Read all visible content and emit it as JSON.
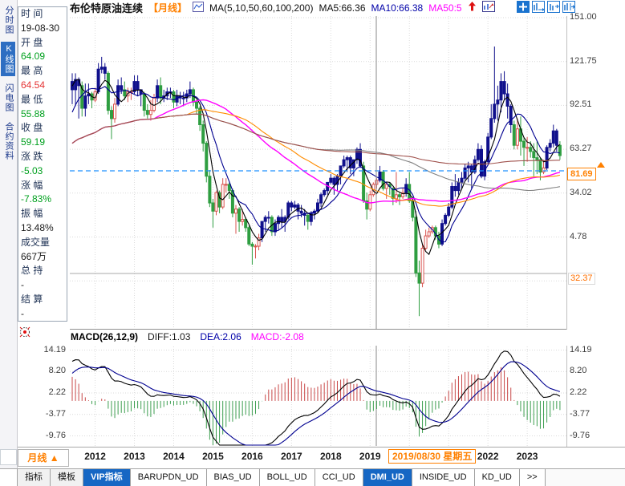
{
  "header": {
    "title": "布伦特原油连续",
    "period_tag": "【月线】",
    "ma_settings": "MA(5,10,50,60,100,200)",
    "ma5": "MA5:66.36",
    "ma10": "MA10:66.38",
    "ma50": "MA50:5"
  },
  "sidebar_tabs": [
    {
      "label": "分时图",
      "active": false
    },
    {
      "label": "K线图",
      "active": true
    },
    {
      "label": "闪电图",
      "active": false
    },
    {
      "label": "合约资料",
      "active": false
    }
  ],
  "quote_panel": {
    "rows": [
      {
        "label": "时 间",
        "value": "19-08-30",
        "color": "dark"
      },
      {
        "label": "开 盘",
        "value": "64.09",
        "color": "green"
      },
      {
        "label": "最 高",
        "value": "64.54",
        "color": "red"
      },
      {
        "label": "最 低",
        "value": "55.88",
        "color": "green"
      },
      {
        "label": "收 盘",
        "value": "59.19",
        "color": "green"
      },
      {
        "label": "涨 跌",
        "value": "-5.03",
        "color": "green"
      },
      {
        "label": "涨 幅",
        "value": "-7.83%",
        "color": "green"
      },
      {
        "label": "振 幅",
        "value": "13.48%",
        "color": "dark"
      },
      {
        "label": "成交量",
        "value": "667万",
        "color": "dark"
      },
      {
        "label": "总 持",
        "value": "-",
        "color": "dark"
      },
      {
        "label": "结 算",
        "value": "-",
        "color": "dark"
      }
    ]
  },
  "macd_header": {
    "name": "MACD(26,12,9)",
    "diff": "DIFF:1.03",
    "dea": "DEA:2.06",
    "macd": "MACD:-2.08"
  },
  "period_selector": {
    "label": "月线 ▲"
  },
  "bottom_left_tabs": [
    {
      "label": "指标"
    },
    {
      "label": "模板"
    }
  ],
  "indicator_tabs": [
    {
      "label": "VIP指标",
      "active": true
    },
    {
      "label": "BARUPDN_UD",
      "active": false
    },
    {
      "label": "BIAS_UD",
      "active": false
    },
    {
      "label": "BOLL_UD",
      "active": false
    },
    {
      "label": "CCI_UD",
      "active": false
    },
    {
      "label": "DMI_UD",
      "active": true
    },
    {
      "label": "INSIDE_UD",
      "active": false
    },
    {
      "label": "KD_UD",
      "active": false
    },
    {
      "label": ">>",
      "active": false
    }
  ],
  "chart_data": {
    "type": "candlestick",
    "title": "布伦特原油连续 月线",
    "freq": "monthly",
    "start": "2011-06",
    "warmup_closes": [
      69,
      71,
      73,
      68,
      75,
      77,
      78,
      74,
      72,
      77,
      79,
      85,
      87,
      75,
      78,
      82,
      84,
      86,
      93,
      97,
      103,
      112,
      126,
      116
    ],
    "candles": [
      [
        116,
        120,
        105,
        112
      ],
      [
        112,
        120,
        104,
        117
      ],
      [
        117,
        118,
        98,
        114
      ],
      [
        114,
        116,
        99,
        103
      ],
      [
        103,
        115,
        99,
        109
      ],
      [
        109,
        115,
        105,
        110
      ],
      [
        110,
        111,
        103,
        107
      ],
      [
        107,
        113,
        106,
        111
      ],
      [
        111,
        125,
        110,
        122
      ],
      [
        122,
        128,
        120,
        123
      ],
      [
        123,
        125,
        117,
        120
      ],
      [
        120,
        121,
        100,
        102
      ],
      [
        102,
        104,
        88,
        98
      ],
      [
        98,
        108,
        96,
        105
      ],
      [
        105,
        117,
        104,
        114
      ],
      [
        114,
        118,
        110,
        112
      ],
      [
        112,
        116,
        107,
        109
      ],
      [
        109,
        113,
        106,
        111
      ],
      [
        111,
        113,
        107,
        111
      ],
      [
        111,
        119,
        110,
        116
      ],
      [
        116,
        119,
        109,
        112
      ],
      [
        112,
        112,
        104,
        110
      ],
      [
        110,
        111,
        99,
        102
      ],
      [
        102,
        105,
        98,
        100
      ],
      [
        100,
        107,
        97,
        102
      ],
      [
        102,
        110,
        101,
        108
      ],
      [
        108,
        117,
        106,
        114
      ],
      [
        114,
        118,
        105,
        108
      ],
      [
        108,
        112,
        106,
        109
      ],
      [
        109,
        113,
        107,
        111
      ],
      [
        111,
        113,
        108,
        111
      ],
      [
        111,
        112,
        103,
        106
      ],
      [
        106,
        112,
        104,
        109
      ],
      [
        109,
        111,
        105,
        108
      ],
      [
        108,
        111,
        104,
        108
      ],
      [
        108,
        112,
        106,
        110
      ],
      [
        110,
        116,
        108,
        112
      ],
      [
        112,
        113,
        104,
        106
      ],
      [
        106,
        107,
        100,
        103
      ],
      [
        103,
        104,
        92,
        95
      ],
      [
        95,
        97,
        82,
        86
      ],
      [
        86,
        87,
        67,
        70
      ],
      [
        70,
        73,
        55,
        57
      ],
      [
        57,
        59,
        45,
        53
      ],
      [
        53,
        63,
        51,
        62
      ],
      [
        62,
        63,
        52,
        55
      ],
      [
        55,
        69,
        54,
        66
      ],
      [
        66,
        69,
        62,
        66
      ],
      [
        66,
        67,
        59,
        63
      ],
      [
        63,
        64,
        50,
        52
      ],
      [
        52,
        56,
        42,
        54
      ],
      [
        54,
        55,
        43,
        48
      ],
      [
        48,
        54,
        46,
        49
      ],
      [
        49,
        50,
        43,
        45
      ],
      [
        45,
        46,
        36,
        37
      ],
      [
        37,
        38,
        27,
        36
      ],
      [
        36,
        37,
        30,
        36
      ],
      [
        36,
        42,
        34,
        40
      ],
      [
        40,
        48,
        38,
        48
      ],
      [
        48,
        51,
        43,
        50
      ],
      [
        50,
        53,
        47,
        50
      ],
      [
        50,
        51,
        41,
        43
      ],
      [
        43,
        49,
        41,
        47
      ],
      [
        47,
        51,
        44,
        50
      ],
      [
        50,
        54,
        45,
        48
      ],
      [
        48,
        51,
        43,
        50
      ],
      [
        50,
        58,
        49,
        57
      ],
      [
        57,
        58,
        53,
        55
      ],
      [
        55,
        58,
        54,
        56
      ],
      [
        56,
        57,
        49,
        53
      ],
      [
        53,
        56,
        50,
        52
      ],
      [
        52,
        54,
        46,
        51
      ],
      [
        51,
        52,
        44,
        48
      ],
      [
        48,
        53,
        46,
        52
      ],
      [
        52,
        54,
        49,
        53
      ],
      [
        53,
        59,
        52,
        57
      ],
      [
        57,
        62,
        55,
        61
      ],
      [
        61,
        64,
        60,
        63
      ],
      [
        63,
        67,
        61,
        67
      ],
      [
        67,
        71,
        66,
        69
      ],
      [
        69,
        70,
        61,
        66
      ],
      [
        66,
        71,
        63,
        70
      ],
      [
        70,
        75,
        66,
        75
      ],
      [
        75,
        80,
        74,
        78
      ],
      [
        78,
        80,
        72,
        79
      ],
      [
        79,
        80,
        71,
        74
      ],
      [
        74,
        78,
        70,
        78
      ],
      [
        78,
        84,
        76,
        83
      ],
      [
        83,
        86,
        74,
        75
      ],
      [
        75,
        77,
        57,
        58
      ],
      [
        58,
        62,
        49,
        54
      ],
      [
        54,
        63,
        53,
        61
      ],
      [
        61,
        67,
        60,
        66
      ],
      [
        66,
        69,
        64,
        68
      ],
      [
        68,
        75,
        67,
        72
      ],
      [
        72,
        73,
        63,
        64
      ],
      [
        64,
        67,
        59,
        66
      ],
      [
        66,
        67,
        61,
        65
      ],
      [
        64.09,
        64.54,
        55.88,
        59.19
      ],
      [
        59,
        72,
        57,
        61
      ],
      [
        61,
        62,
        56,
        60
      ],
      [
        60,
        64,
        59,
        62
      ],
      [
        62,
        69,
        60,
        66
      ],
      [
        66,
        72,
        57,
        58
      ],
      [
        58,
        60,
        48,
        50
      ],
      [
        50,
        53,
        21,
        23
      ],
      [
        23,
        29,
        2,
        18
      ],
      [
        18,
        37,
        16,
        35
      ],
      [
        35,
        44,
        34,
        41
      ],
      [
        41,
        45,
        40,
        43
      ],
      [
        43,
        46,
        42,
        45
      ],
      [
        45,
        46,
        39,
        41
      ],
      [
        41,
        43,
        35,
        37
      ],
      [
        37,
        49,
        36,
        47
      ],
      [
        47,
        52,
        46,
        51
      ],
      [
        51,
        57,
        50,
        55
      ],
      [
        55,
        67,
        54,
        65
      ],
      [
        65,
        71,
        60,
        63
      ],
      [
        63,
        69,
        61,
        67
      ],
      [
        67,
        72,
        64,
        69
      ],
      [
        69,
        76,
        68,
        74
      ],
      [
        74,
        77,
        67,
        75
      ],
      [
        75,
        76,
        64,
        72
      ],
      [
        72,
        80,
        71,
        78
      ],
      [
        78,
        86,
        77,
        83
      ],
      [
        83,
        85,
        69,
        70
      ],
      [
        70,
        78,
        68,
        77
      ],
      [
        77,
        91,
        76,
        89
      ],
      [
        89,
        105,
        88,
        98
      ],
      [
        98,
        133,
        96,
        105
      ],
      [
        105,
        114,
        97,
        107
      ],
      [
        107,
        120,
        101,
        116
      ],
      [
        116,
        121,
        107,
        110
      ],
      [
        110,
        115,
        98,
        104
      ],
      [
        104,
        105,
        91,
        95
      ],
      [
        95,
        97,
        83,
        85
      ],
      [
        85,
        98,
        83,
        93
      ],
      [
        93,
        99,
        80,
        87
      ],
      [
        87,
        89,
        75,
        84
      ],
      [
        84,
        89,
        77,
        84
      ],
      [
        84,
        87,
        79,
        82
      ],
      [
        82,
        86,
        70,
        79
      ],
      [
        79,
        87,
        71,
        78
      ],
      [
        78,
        79,
        68,
        72
      ],
      [
        72,
        78,
        71,
        74
      ],
      [
        74,
        85,
        73,
        84
      ],
      [
        84,
        88,
        82,
        86
      ],
      [
        86,
        95,
        84,
        92
      ],
      [
        92,
        93,
        82,
        85
      ],
      [
        85,
        87,
        78,
        80
      ]
    ],
    "ma_periods": [
      5,
      10,
      50,
      60,
      100,
      200
    ],
    "ma_colors": {
      "5": "#000000",
      "10": "#000090",
      "50": "#ff00ff",
      "60": "#ff8c00",
      "100": "#808080",
      "200": "#a0524d"
    },
    "candle_colors": {
      "trend": "#10108c",
      "up": "#d9534f",
      "down": "#2f9e41"
    },
    "y_axis": {
      "ticks": [
        "151.00",
        "121.75",
        "92.51",
        "63.27",
        "34.02",
        "4.78"
      ]
    },
    "price_marker": {
      "label": "81.69",
      "direction": "up"
    },
    "level_label": "32.37",
    "x_axis": {
      "years": [
        "2012",
        "2013",
        "2014",
        "2015",
        "2016",
        "2017",
        "2018",
        "2019",
        "2020",
        "2021",
        "2022",
        "2023"
      ],
      "crosshair_date": "2019/08/30 星期五"
    },
    "macd": {
      "params": [
        26,
        12,
        9
      ],
      "ticks": [
        "14.19",
        "8.20",
        "2.22",
        "-3.77",
        "-9.76"
      ],
      "diff_color": "#000000",
      "dea_color": "#000090",
      "bar_up_color": "#c84848",
      "bar_down_color": "#3d9e50"
    },
    "overlay_colors": {
      "dashed_line": "#1e90ff",
      "crosshair": "#8a8a8a",
      "level_line": "#a8a8a8"
    }
  }
}
